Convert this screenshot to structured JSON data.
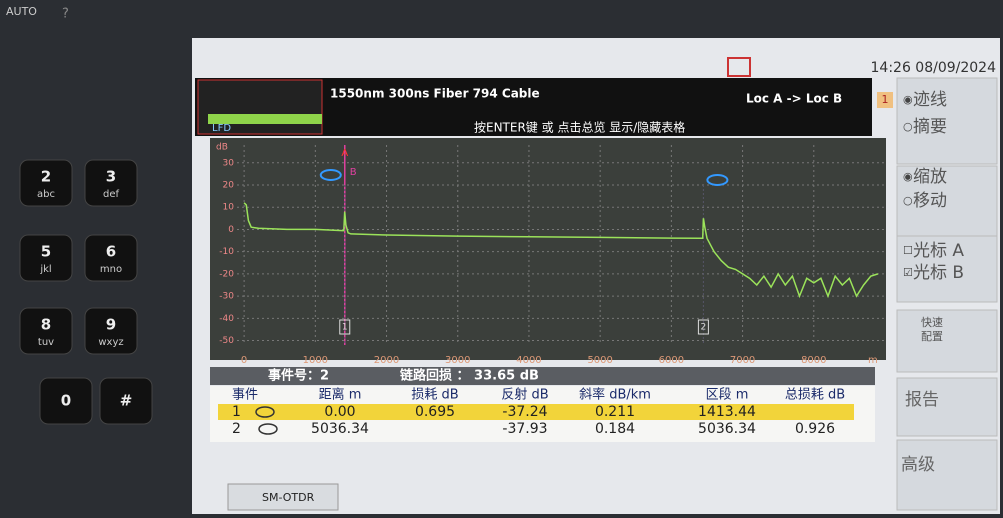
{
  "device": {
    "auto": "AUTO",
    "help": "?",
    "keys": [
      {
        "digit": "2",
        "letters": "abc"
      },
      {
        "digit": "3",
        "letters": "def"
      },
      {
        "digit": "5",
        "letters": "jkl"
      },
      {
        "digit": "6",
        "letters": "mno"
      },
      {
        "digit": "8",
        "letters": "tuv"
      },
      {
        "digit": "9",
        "letters": "wxyz"
      },
      {
        "digit": "0"
      },
      {
        "digit": "#"
      }
    ]
  },
  "status_bar": {
    "time": "14:26 08/09/2024"
  },
  "header": {
    "overview_label": "LFD",
    "setup": "1550nm 300ns Fiber 794 Cable",
    "direction": "Loc A -> Loc B",
    "hint": "按ENTER键 或 点击总览 显示/隐藏表格",
    "page": "1"
  },
  "trace": {
    "y_label": "dB",
    "x_unit": "m",
    "color": "#9be35a",
    "x": [
      0,
      30,
      60,
      100,
      200,
      600,
      1000,
      1380,
      1400,
      1413,
      1430,
      1460,
      1500,
      2000,
      3000,
      4000,
      5000,
      6000,
      6400,
      6440,
      6450,
      6470,
      6500,
      6600,
      6700,
      6800,
      6900,
      7000,
      7100,
      7200,
      7300,
      7400,
      7500,
      7600,
      7700,
      7800,
      7900,
      8000,
      8100,
      8200,
      8300,
      8400,
      8500,
      8600,
      8700,
      8800,
      8900
    ],
    "y": [
      12,
      11,
      4,
      1,
      0.5,
      0,
      0,
      -0.5,
      -0.5,
      8,
      2,
      -1.5,
      -2,
      -2.5,
      -3,
      -3.3,
      -3.6,
      -3.9,
      -4,
      -4,
      5,
      1,
      -4,
      -10,
      -14,
      -17,
      -18,
      -20,
      -22,
      -25,
      -21,
      -26,
      -20,
      -25,
      -21,
      -30,
      -22,
      -24,
      -22,
      -30,
      -21,
      -25,
      -22,
      -30,
      -25,
      -21,
      -20
    ],
    "xlim": [
      -100,
      9000
    ],
    "ylim": [
      -52,
      38
    ],
    "xticks": [
      0,
      1000,
      2000,
      3000,
      4000,
      5000,
      6000,
      7000,
      8000
    ],
    "yticks": [
      30,
      20,
      10,
      0,
      -10,
      -20,
      -30,
      -40,
      -50
    ],
    "grid": true,
    "cursor_labels": [
      "A",
      "B"
    ],
    "cursor_x": 1413.44,
    "events": [
      {
        "label": "1",
        "x": 1413.44
      },
      {
        "label": "2",
        "x": 6449.78
      }
    ]
  },
  "summary": {
    "event": "事件号：2",
    "link_orl": "链路回损 ： 33.65 dB"
  },
  "table": {
    "columns": [
      "事件",
      "距离 m",
      "损耗 dB",
      "反射 dB",
      "斜率 dB/km",
      "区段 m",
      "总损耗 dB"
    ],
    "rows": [
      [
        "1",
        "0.00",
        "0.695",
        "-37.24",
        "0.211",
        "1413.44",
        null
      ],
      [
        "2",
        "5036.34",
        null,
        "-37.93",
        "0.184",
        "5036.34",
        "0.926"
      ]
    ]
  },
  "side_menu": {
    "trace": "迹线",
    "summary": "摘要",
    "zoom": "缩放",
    "move": "移动",
    "cursor_a": "光标 A",
    "cursor_b": "光标 B",
    "quick_setup": [
      "快速",
      "配置"
    ],
    "report": "报告",
    "advanced": "高级"
  },
  "tab": "SM-OTDR"
}
